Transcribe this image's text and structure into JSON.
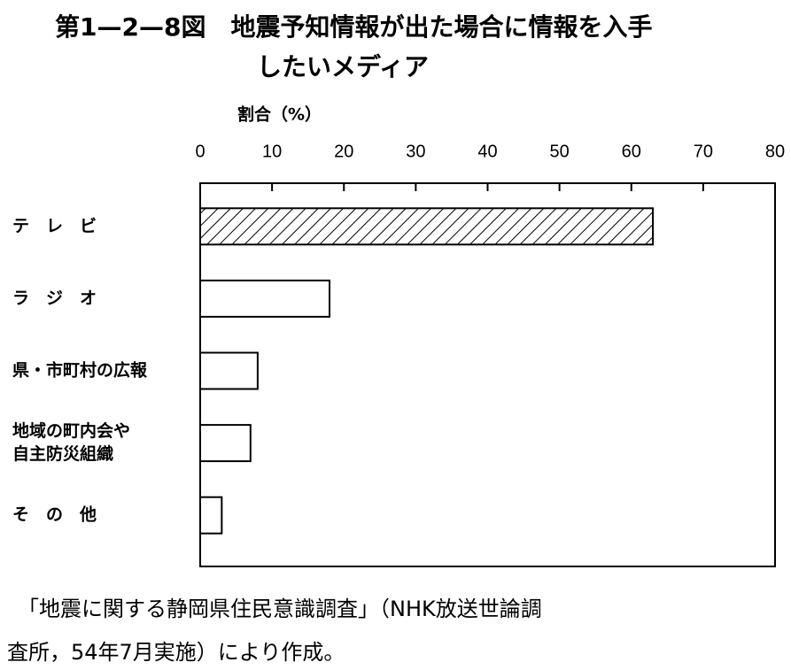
{
  "chart_data": {
    "type": "hbar",
    "title": [
      "第1—2—8図　地震予知情報が出た場合に情報を入手",
      "したいメディア"
    ],
    "x_label": "割合（%）",
    "categories": [
      [
        "テ　レ　ビ"
      ],
      [
        "ラ　ジ　オ"
      ],
      [
        "県・市町村の広報"
      ],
      [
        "地域の町内会や",
        "自主防災組織"
      ],
      [
        "そ　の　他"
      ]
    ],
    "values": [
      63,
      18,
      8,
      7,
      3
    ],
    "bar_fills": [
      "hatch",
      "white",
      "white",
      "white",
      "white"
    ],
    "color": "#000000",
    "xlim": [
      0,
      80
    ],
    "xticks": [
      0,
      10,
      20,
      30,
      40,
      50,
      60,
      70,
      80
    ],
    "source": [
      "「地震に関する静岡県住民意識調査」（NHK放送世論調",
      "査所，54年7月実施）により作成。"
    ]
  }
}
